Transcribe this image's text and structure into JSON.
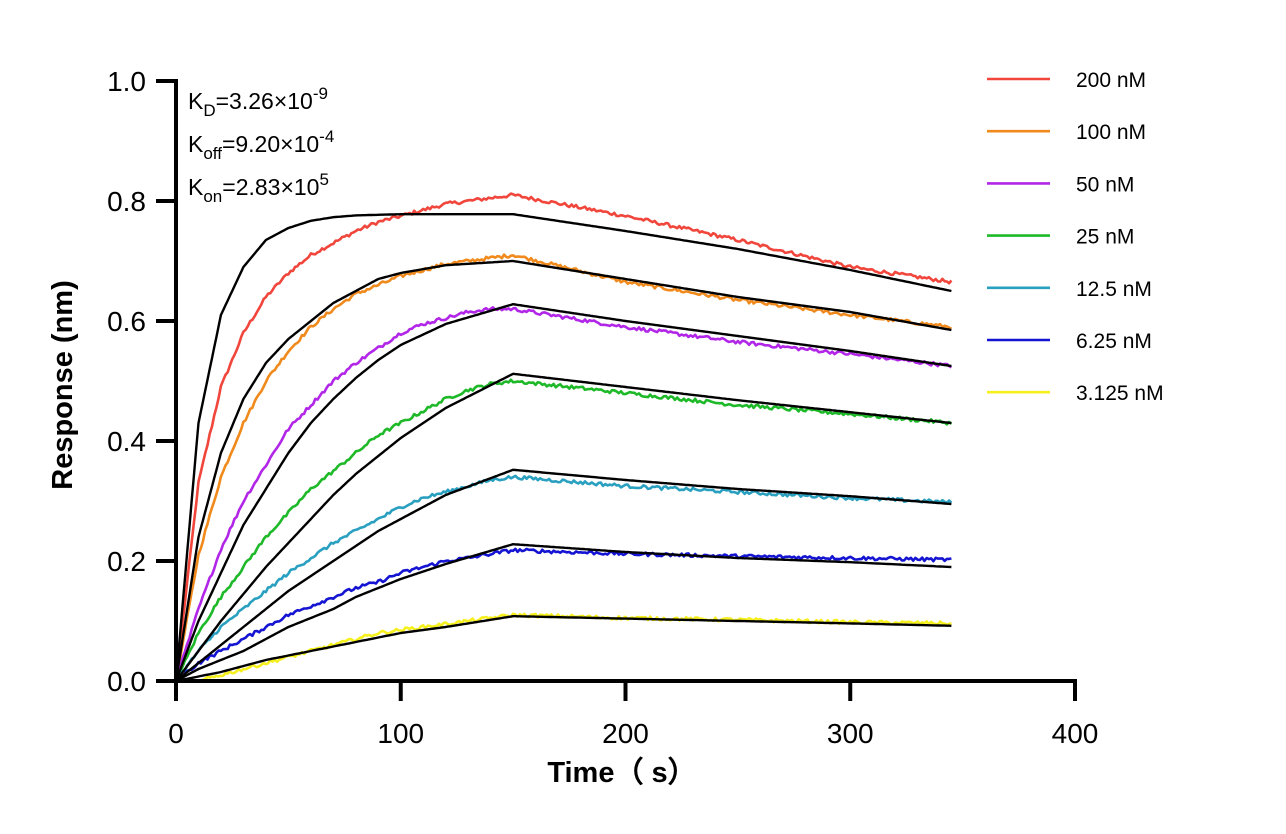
{
  "chart_data": {
    "type": "line",
    "xlabel": "Time（ s）",
    "ylabel": "Response (nm)",
    "xlim": [
      0,
      400
    ],
    "ylim": [
      0,
      1.0
    ],
    "x_ticks": [
      0,
      100,
      200,
      300,
      400
    ],
    "y_ticks": [
      0.0,
      0.2,
      0.4,
      0.6,
      0.8,
      1.0
    ],
    "x_tick_labels": [
      "0",
      "100",
      "200",
      "300",
      "400"
    ],
    "y_tick_labels": [
      "0.0",
      "0.2",
      "0.4",
      "0.6",
      "0.8",
      "1.0"
    ],
    "grid": false,
    "legend_position": "top-right",
    "association_end": 150,
    "dissociation_end": 345,
    "annotations": {
      "kd": {
        "base": "K",
        "sub": "D",
        "value": "=3.26×10",
        "exp": "-9"
      },
      "koff": {
        "base": "K",
        "sub": "off",
        "value": "=9.20×10",
        "exp": "-4"
      },
      "kon": {
        "base": "K",
        "sub": "on",
        "value": "=2.83×10",
        "exp": "5"
      }
    },
    "series": [
      {
        "name": "200 nM",
        "color": "#f0463c",
        "points": [
          [
            0,
            0
          ],
          [
            10,
            0.33
          ],
          [
            20,
            0.49
          ],
          [
            30,
            0.58
          ],
          [
            40,
            0.64
          ],
          [
            50,
            0.68
          ],
          [
            60,
            0.71
          ],
          [
            70,
            0.73
          ],
          [
            80,
            0.75
          ],
          [
            90,
            0.765
          ],
          [
            100,
            0.775
          ],
          [
            110,
            0.785
          ],
          [
            120,
            0.795
          ],
          [
            130,
            0.8
          ],
          [
            140,
            0.805
          ],
          [
            150,
            0.81
          ],
          [
            200,
            0.775
          ],
          [
            250,
            0.735
          ],
          [
            300,
            0.69
          ],
          [
            345,
            0.665
          ]
        ],
        "fit": [
          [
            0,
            0
          ],
          [
            10,
            0.43
          ],
          [
            20,
            0.61
          ],
          [
            30,
            0.69
          ],
          [
            40,
            0.735
          ],
          [
            50,
            0.755
          ],
          [
            60,
            0.767
          ],
          [
            70,
            0.773
          ],
          [
            80,
            0.776
          ],
          [
            100,
            0.778
          ],
          [
            150,
            0.778
          ],
          [
            200,
            0.75
          ],
          [
            250,
            0.72
          ],
          [
            300,
            0.685
          ],
          [
            345,
            0.65
          ]
        ]
      },
      {
        "name": "100 nM",
        "color": "#f08a1c",
        "points": [
          [
            0,
            0
          ],
          [
            10,
            0.21
          ],
          [
            20,
            0.34
          ],
          [
            30,
            0.43
          ],
          [
            40,
            0.5
          ],
          [
            50,
            0.55
          ],
          [
            60,
            0.59
          ],
          [
            70,
            0.62
          ],
          [
            80,
            0.645
          ],
          [
            90,
            0.66
          ],
          [
            100,
            0.675
          ],
          [
            110,
            0.685
          ],
          [
            120,
            0.695
          ],
          [
            130,
            0.7
          ],
          [
            140,
            0.705
          ],
          [
            150,
            0.71
          ],
          [
            200,
            0.665
          ],
          [
            250,
            0.635
          ],
          [
            300,
            0.61
          ],
          [
            345,
            0.59
          ]
        ],
        "fit": [
          [
            0,
            0
          ],
          [
            10,
            0.24
          ],
          [
            20,
            0.38
          ],
          [
            30,
            0.47
          ],
          [
            40,
            0.53
          ],
          [
            50,
            0.57
          ],
          [
            60,
            0.6
          ],
          [
            70,
            0.63
          ],
          [
            80,
            0.65
          ],
          [
            90,
            0.67
          ],
          [
            100,
            0.68
          ],
          [
            120,
            0.693
          ],
          [
            150,
            0.7
          ],
          [
            200,
            0.67
          ],
          [
            250,
            0.64
          ],
          [
            300,
            0.615
          ],
          [
            345,
            0.585
          ]
        ]
      },
      {
        "name": "50 nM",
        "color": "#b226e8",
        "points": [
          [
            0,
            0
          ],
          [
            10,
            0.12
          ],
          [
            20,
            0.22
          ],
          [
            30,
            0.3
          ],
          [
            40,
            0.36
          ],
          [
            50,
            0.42
          ],
          [
            60,
            0.46
          ],
          [
            70,
            0.5
          ],
          [
            80,
            0.53
          ],
          [
            90,
            0.555
          ],
          [
            100,
            0.58
          ],
          [
            110,
            0.595
          ],
          [
            120,
            0.605
          ],
          [
            130,
            0.615
          ],
          [
            140,
            0.62
          ],
          [
            150,
            0.62
          ],
          [
            200,
            0.59
          ],
          [
            250,
            0.565
          ],
          [
            300,
            0.545
          ],
          [
            345,
            0.525
          ]
        ],
        "fit": [
          [
            0,
            0
          ],
          [
            10,
            0.1
          ],
          [
            20,
            0.18
          ],
          [
            30,
            0.26
          ],
          [
            40,
            0.32
          ],
          [
            50,
            0.38
          ],
          [
            60,
            0.43
          ],
          [
            70,
            0.47
          ],
          [
            80,
            0.505
          ],
          [
            90,
            0.535
          ],
          [
            100,
            0.56
          ],
          [
            120,
            0.595
          ],
          [
            150,
            0.628
          ],
          [
            200,
            0.6
          ],
          [
            250,
            0.575
          ],
          [
            300,
            0.55
          ],
          [
            345,
            0.525
          ]
        ]
      },
      {
        "name": "25 nM",
        "color": "#1eb928",
        "points": [
          [
            0,
            0
          ],
          [
            10,
            0.08
          ],
          [
            20,
            0.14
          ],
          [
            30,
            0.19
          ],
          [
            40,
            0.24
          ],
          [
            50,
            0.28
          ],
          [
            60,
            0.32
          ],
          [
            70,
            0.35
          ],
          [
            80,
            0.38
          ],
          [
            90,
            0.41
          ],
          [
            100,
            0.43
          ],
          [
            110,
            0.45
          ],
          [
            120,
            0.47
          ],
          [
            130,
            0.485
          ],
          [
            140,
            0.495
          ],
          [
            150,
            0.5
          ],
          [
            200,
            0.48
          ],
          [
            250,
            0.46
          ],
          [
            300,
            0.445
          ],
          [
            345,
            0.43
          ]
        ],
        "fit": [
          [
            0,
            0
          ],
          [
            10,
            0.05
          ],
          [
            20,
            0.1
          ],
          [
            30,
            0.145
          ],
          [
            40,
            0.19
          ],
          [
            50,
            0.23
          ],
          [
            60,
            0.27
          ],
          [
            70,
            0.31
          ],
          [
            80,
            0.345
          ],
          [
            90,
            0.375
          ],
          [
            100,
            0.405
          ],
          [
            120,
            0.455
          ],
          [
            150,
            0.512
          ],
          [
            200,
            0.49
          ],
          [
            250,
            0.468
          ],
          [
            300,
            0.448
          ],
          [
            345,
            0.43
          ]
        ]
      },
      {
        "name": "12.5 nM",
        "color": "#2aa0c0",
        "points": [
          [
            0,
            0
          ],
          [
            10,
            0.05
          ],
          [
            20,
            0.09
          ],
          [
            30,
            0.12
          ],
          [
            40,
            0.15
          ],
          [
            50,
            0.18
          ],
          [
            60,
            0.205
          ],
          [
            70,
            0.23
          ],
          [
            80,
            0.25
          ],
          [
            90,
            0.27
          ],
          [
            100,
            0.29
          ],
          [
            110,
            0.305
          ],
          [
            120,
            0.315
          ],
          [
            130,
            0.325
          ],
          [
            140,
            0.335
          ],
          [
            150,
            0.34
          ],
          [
            200,
            0.325
          ],
          [
            250,
            0.315
          ],
          [
            300,
            0.305
          ],
          [
            345,
            0.298
          ]
        ],
        "fit": [
          [
            0,
            0
          ],
          [
            10,
            0.03
          ],
          [
            20,
            0.06
          ],
          [
            30,
            0.09
          ],
          [
            40,
            0.12
          ],
          [
            50,
            0.15
          ],
          [
            60,
            0.175
          ],
          [
            70,
            0.2
          ],
          [
            80,
            0.225
          ],
          [
            90,
            0.25
          ],
          [
            100,
            0.27
          ],
          [
            120,
            0.31
          ],
          [
            150,
            0.352
          ],
          [
            200,
            0.335
          ],
          [
            250,
            0.32
          ],
          [
            300,
            0.308
          ],
          [
            345,
            0.295
          ]
        ]
      },
      {
        "name": "6.25 nM",
        "color": "#1414d2",
        "points": [
          [
            0,
            0
          ],
          [
            10,
            0.03
          ],
          [
            20,
            0.05
          ],
          [
            30,
            0.07
          ],
          [
            40,
            0.09
          ],
          [
            50,
            0.11
          ],
          [
            60,
            0.125
          ],
          [
            70,
            0.14
          ],
          [
            80,
            0.155
          ],
          [
            90,
            0.165
          ],
          [
            100,
            0.18
          ],
          [
            110,
            0.19
          ],
          [
            120,
            0.2
          ],
          [
            130,
            0.205
          ],
          [
            140,
            0.212
          ],
          [
            150,
            0.218
          ],
          [
            200,
            0.212
          ],
          [
            250,
            0.208
          ],
          [
            300,
            0.205
          ],
          [
            345,
            0.202
          ]
        ],
        "fit": [
          [
            0,
            0
          ],
          [
            10,
            0.02
          ],
          [
            20,
            0.035
          ],
          [
            30,
            0.05
          ],
          [
            40,
            0.07
          ],
          [
            50,
            0.09
          ],
          [
            60,
            0.105
          ],
          [
            70,
            0.12
          ],
          [
            80,
            0.14
          ],
          [
            90,
            0.155
          ],
          [
            100,
            0.17
          ],
          [
            120,
            0.195
          ],
          [
            150,
            0.228
          ],
          [
            200,
            0.215
          ],
          [
            250,
            0.205
          ],
          [
            300,
            0.198
          ],
          [
            345,
            0.19
          ]
        ]
      },
      {
        "name": "3.125 nM",
        "color": "#f5f01e",
        "points": [
          [
            10,
            0
          ],
          [
            20,
            0.01
          ],
          [
            30,
            0.02
          ],
          [
            40,
            0.03
          ],
          [
            50,
            0.04
          ],
          [
            60,
            0.05
          ],
          [
            70,
            0.06
          ],
          [
            80,
            0.07
          ],
          [
            90,
            0.08
          ],
          [
            100,
            0.085
          ],
          [
            110,
            0.09
          ],
          [
            120,
            0.095
          ],
          [
            130,
            0.1
          ],
          [
            140,
            0.105
          ],
          [
            150,
            0.11
          ],
          [
            200,
            0.105
          ],
          [
            250,
            0.102
          ],
          [
            300,
            0.098
          ],
          [
            345,
            0.096
          ]
        ],
        "fit": [
          [
            0,
            0
          ],
          [
            20,
            0.015
          ],
          [
            40,
            0.035
          ],
          [
            60,
            0.05
          ],
          [
            80,
            0.065
          ],
          [
            100,
            0.08
          ],
          [
            120,
            0.09
          ],
          [
            150,
            0.108
          ],
          [
            200,
            0.104
          ],
          [
            250,
            0.1
          ],
          [
            300,
            0.096
          ],
          [
            345,
            0.092
          ]
        ]
      }
    ]
  }
}
